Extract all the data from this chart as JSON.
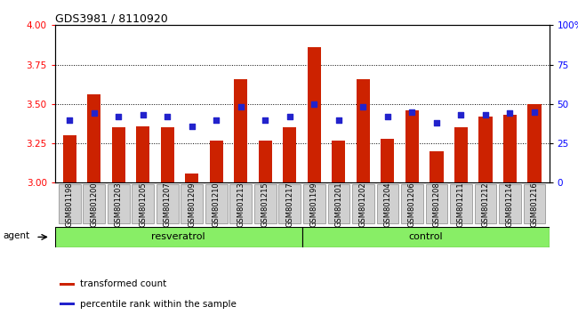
{
  "title": "GDS3981 / 8110920",
  "samples": [
    "GSM801198",
    "GSM801200",
    "GSM801203",
    "GSM801205",
    "GSM801207",
    "GSM801209",
    "GSM801210",
    "GSM801213",
    "GSM801215",
    "GSM801217",
    "GSM801199",
    "GSM801201",
    "GSM801202",
    "GSM801204",
    "GSM801206",
    "GSM801208",
    "GSM801211",
    "GSM801212",
    "GSM801214",
    "GSM801216"
  ],
  "bar_values": [
    3.3,
    3.56,
    3.35,
    3.36,
    3.35,
    3.06,
    3.27,
    3.66,
    3.27,
    3.35,
    3.86,
    3.27,
    3.66,
    3.28,
    3.46,
    3.2,
    3.35,
    3.42,
    3.43,
    3.5
  ],
  "blue_percentile": [
    40,
    44,
    42,
    43,
    42,
    36,
    40,
    48,
    40,
    42,
    50,
    40,
    48,
    42,
    45,
    38,
    43,
    43,
    44,
    45
  ],
  "resveratrol_count": 10,
  "control_count": 10,
  "bar_color": "#cc2200",
  "blue_color": "#2222cc",
  "resveratrol_color": "#88ee66",
  "control_color": "#88ee66",
  "ylim_left": [
    3.0,
    4.0
  ],
  "ylim_right": [
    0,
    100
  ],
  "yticks_left": [
    3.0,
    3.25,
    3.5,
    3.75,
    4.0
  ],
  "yticks_right": [
    0,
    25,
    50,
    75,
    100
  ],
  "grid_values": [
    3.25,
    3.5,
    3.75
  ],
  "legend_red": "transformed count",
  "legend_blue": "percentile rank within the sample",
  "xlabel_agent": "agent",
  "bg_color": "#ffffff",
  "tick_label_bg": "#d0d0d0"
}
